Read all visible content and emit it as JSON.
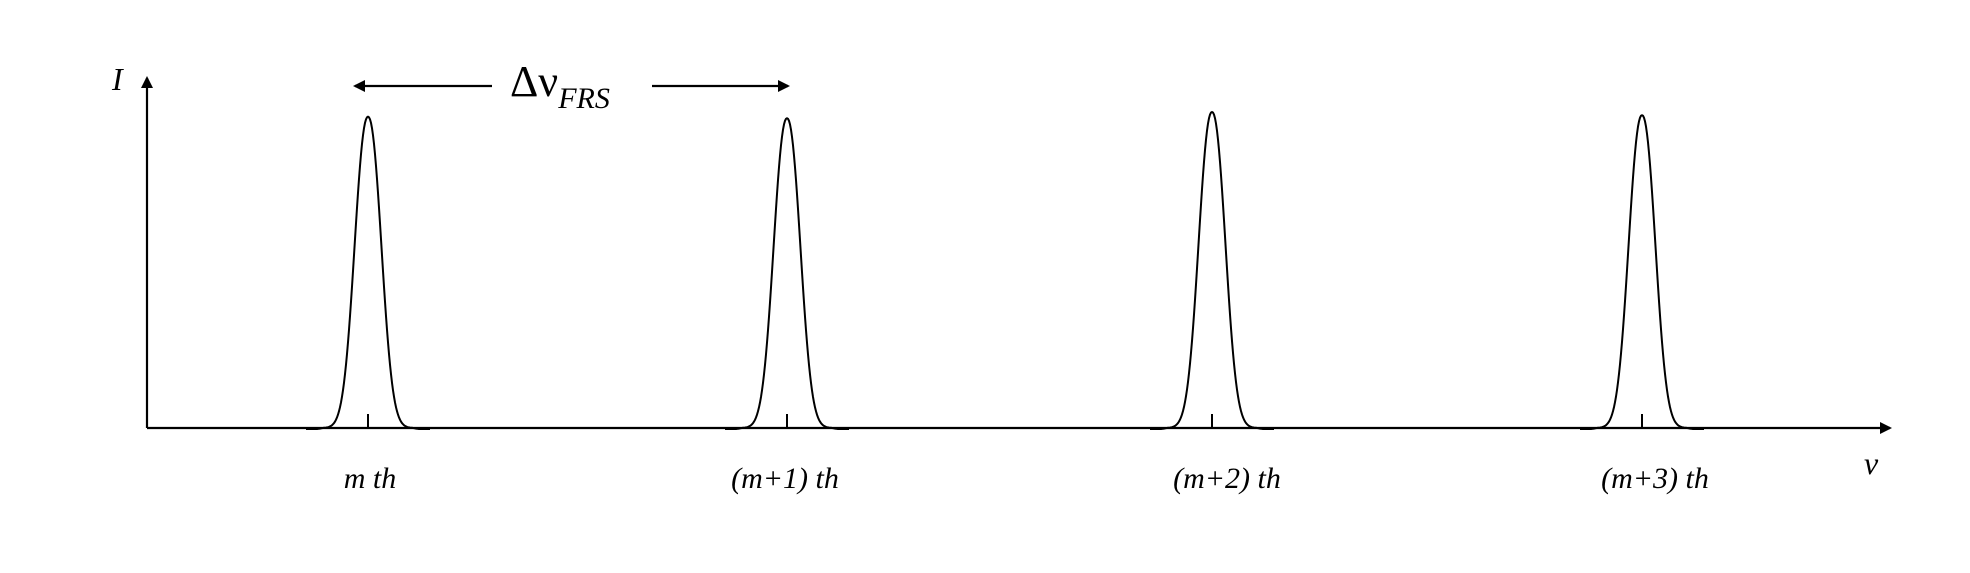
{
  "diagram": {
    "y_axis_label": "I",
    "x_axis_label": "ν",
    "spacing": {
      "symbol": "Δν",
      "subscript": "FRS"
    },
    "peaks": [
      {
        "label": "m th",
        "relative_height": 0.985
      },
      {
        "label": "(m+1) th",
        "relative_height": 0.98
      },
      {
        "label": "(m+2) th",
        "relative_height": 1.0
      },
      {
        "label": "(m+3) th",
        "relative_height": 0.99
      }
    ],
    "colors": {
      "line": "#000000",
      "background": "#ffffff"
    }
  }
}
